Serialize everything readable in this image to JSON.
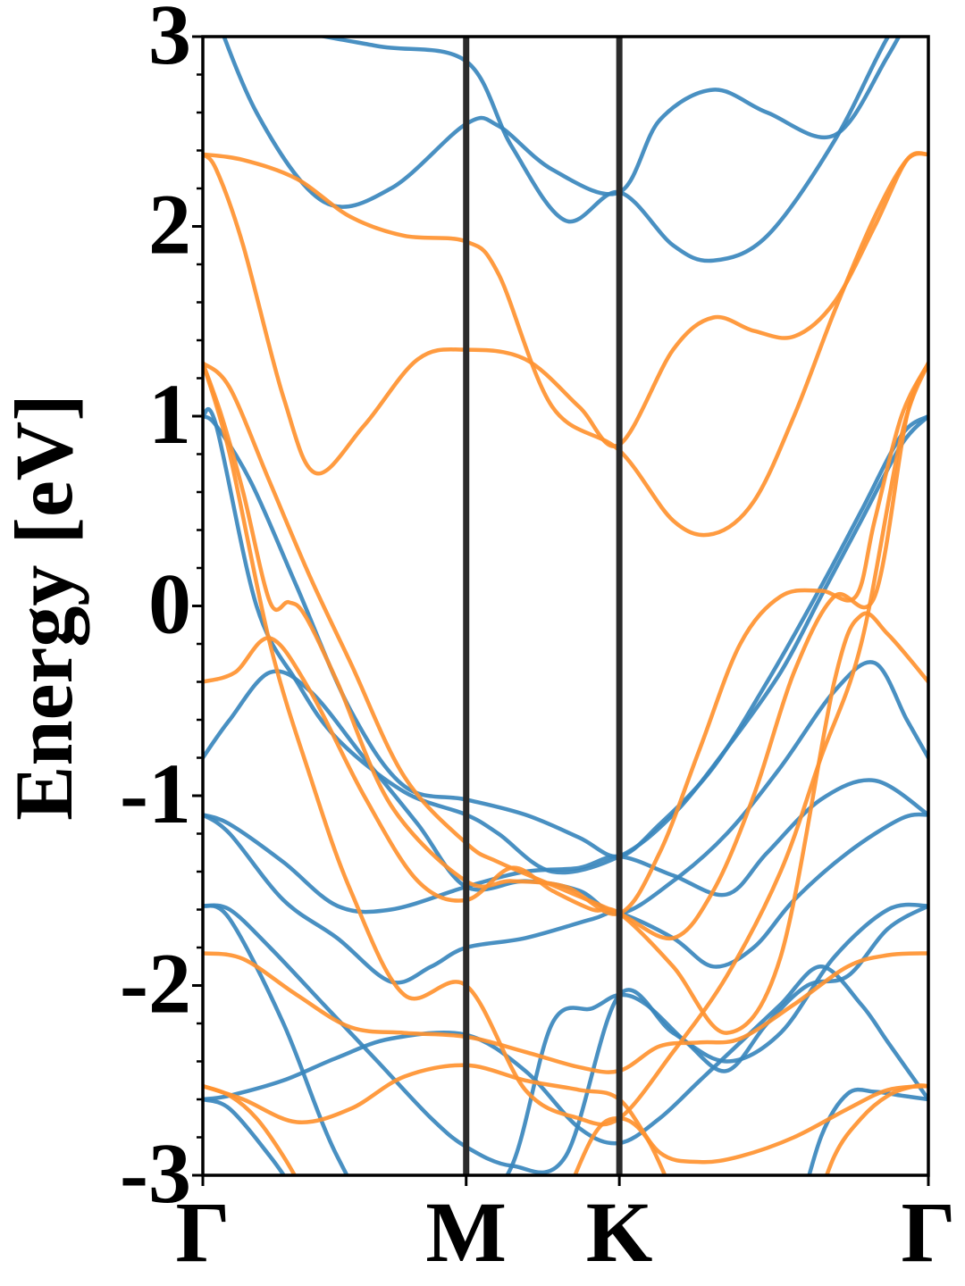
{
  "chart_data": {
    "type": "line",
    "title": "",
    "xlabel": "",
    "ylabel": "Energy [eV]",
    "ylim": [
      -3,
      3
    ],
    "xlim": [
      0,
      2.7
    ],
    "grid": false,
    "legend": "none",
    "high_symmetry_points": [
      {
        "label": "Γ",
        "x": 0.0
      },
      {
        "label": "M",
        "x": 0.98
      },
      {
        "label": "K",
        "x": 1.55
      },
      {
        "label": "Γ",
        "x": 2.7
      }
    ],
    "y_ticks": [
      {
        "value": 3,
        "label": "3"
      },
      {
        "value": 2,
        "label": "2"
      },
      {
        "value": 1,
        "label": "1"
      },
      {
        "value": 0,
        "label": "0"
      },
      {
        "value": -1,
        "label": "-1"
      },
      {
        "value": -2,
        "label": "-2"
      },
      {
        "value": -3,
        "label": "-3"
      }
    ],
    "series_colors": {
      "blue": "#3a87bd",
      "orange": "#ff9330"
    },
    "series": [
      {
        "color": "blue",
        "x": [
          0.0,
          0.2,
          0.45,
          0.7,
          0.98,
          1.1,
          1.3,
          1.55,
          1.7,
          1.9,
          2.1,
          2.35,
          2.55,
          2.7
        ],
        "y": [
          3.3,
          2.6,
          2.13,
          2.2,
          2.54,
          2.53,
          2.3,
          2.18,
          2.56,
          2.72,
          2.6,
          2.48,
          2.9,
          3.3
        ]
      },
      {
        "color": "blue",
        "x": [
          0.0,
          0.3,
          0.65,
          0.98,
          1.15,
          1.35,
          1.55,
          1.75,
          1.9,
          2.1,
          2.35,
          2.55,
          2.7
        ],
        "y": [
          3.2,
          3.05,
          2.95,
          2.87,
          2.42,
          2.03,
          2.18,
          1.9,
          1.82,
          1.95,
          2.45,
          3.0,
          3.3
        ]
      },
      {
        "color": "blue",
        "x": [
          0.0,
          0.05,
          0.18,
          0.35,
          0.55,
          0.75,
          0.98,
          1.2,
          1.4,
          1.55,
          1.7,
          1.9,
          2.1,
          2.3,
          2.45,
          2.6,
          2.7
        ],
        "y": [
          1.0,
          0.95,
          0.65,
          0.1,
          -0.55,
          -0.95,
          -1.02,
          -1.1,
          -1.22,
          -1.32,
          -1.15,
          -0.85,
          -0.4,
          0.1,
          0.5,
          0.9,
          1.0
        ]
      },
      {
        "color": "blue",
        "x": [
          0.0,
          0.05,
          0.2,
          0.35,
          0.5,
          0.75,
          0.98,
          1.1,
          1.3,
          1.55,
          1.75,
          1.95,
          2.15,
          2.3,
          2.45,
          2.6,
          2.7
        ],
        "y": [
          1.0,
          0.95,
          0.0,
          -0.4,
          -0.7,
          -0.98,
          -1.1,
          -1.2,
          -1.4,
          -1.32,
          -1.1,
          -0.75,
          -0.35,
          0.05,
          0.45,
          0.85,
          1.0
        ]
      },
      {
        "color": "blue",
        "x": [
          0.0,
          0.1,
          0.25,
          0.4,
          0.6,
          0.8,
          0.98,
          1.2,
          1.4,
          1.55,
          1.75,
          1.95,
          2.15,
          2.35,
          2.5,
          2.62,
          2.7
        ],
        "y": [
          -0.8,
          -0.6,
          -0.35,
          -0.45,
          -0.8,
          -1.15,
          -1.48,
          -1.45,
          -1.5,
          -1.62,
          -1.45,
          -1.2,
          -0.85,
          -0.45,
          -0.3,
          -0.6,
          -0.8
        ]
      },
      {
        "color": "blue",
        "x": [
          0.0,
          0.1,
          0.3,
          0.5,
          0.7,
          0.98,
          1.2,
          1.4,
          1.55,
          1.75,
          1.95,
          2.1,
          2.3,
          2.5,
          2.7
        ],
        "y": [
          -1.1,
          -1.15,
          -1.35,
          -1.58,
          -1.6,
          -1.48,
          -1.4,
          -1.38,
          -1.32,
          -1.42,
          -1.52,
          -1.3,
          -1.02,
          -0.92,
          -1.1
        ]
      },
      {
        "color": "blue",
        "x": [
          0.0,
          0.1,
          0.3,
          0.5,
          0.7,
          0.85,
          0.98,
          1.2,
          1.45,
          1.55,
          1.75,
          1.9,
          2.05,
          2.2,
          2.4,
          2.6,
          2.7
        ],
        "y": [
          -1.1,
          -1.2,
          -1.55,
          -1.75,
          -1.98,
          -1.9,
          -1.8,
          -1.75,
          -1.65,
          -1.62,
          -1.75,
          -1.9,
          -1.8,
          -1.55,
          -1.3,
          -1.12,
          -1.1
        ]
      },
      {
        "color": "blue",
        "x": [
          0.0,
          0.1,
          0.25,
          0.45,
          0.65,
          0.85,
          0.98,
          1.15,
          1.35,
          1.55,
          1.75,
          1.95,
          2.15,
          2.35,
          2.55,
          2.7
        ],
        "y": [
          -1.58,
          -1.6,
          -1.8,
          -2.1,
          -2.4,
          -2.7,
          -2.85,
          -2.95,
          -2.9,
          -2.05,
          -2.25,
          -2.4,
          -2.25,
          -1.85,
          -1.6,
          -1.58
        ]
      },
      {
        "color": "blue",
        "x": [
          0.0,
          0.1,
          0.3,
          0.5,
          0.7,
          0.98,
          1.15,
          1.3,
          1.45,
          1.55,
          1.65,
          1.8,
          1.95,
          2.1,
          2.25,
          2.4,
          2.55,
          2.7
        ],
        "y": [
          -1.58,
          -1.65,
          -2.2,
          -2.9,
          -3.3,
          -3.2,
          -2.95,
          -2.2,
          -2.12,
          -2.05,
          -2.1,
          -2.3,
          -2.45,
          -2.2,
          -2.0,
          -1.95,
          -1.7,
          -1.58
        ]
      },
      {
        "color": "blue",
        "x": [
          0.0,
          0.1,
          0.3,
          0.5,
          0.7,
          0.98,
          1.2,
          1.4,
          1.55,
          1.7,
          1.85,
          2.0,
          2.15,
          2.3,
          2.45,
          2.55,
          2.7
        ],
        "y": [
          -2.6,
          -2.58,
          -2.5,
          -2.38,
          -2.28,
          -2.26,
          -2.45,
          -2.75,
          -2.83,
          -2.7,
          -2.5,
          -2.3,
          -2.1,
          -1.9,
          -2.1,
          -2.3,
          -2.6
        ]
      },
      {
        "color": "blue",
        "x": [
          0.0,
          0.1,
          0.25,
          0.35,
          0.45
        ],
        "y": [
          -2.6,
          -2.65,
          -2.9,
          -3.1,
          -3.3
        ]
      },
      {
        "color": "blue",
        "x": [
          2.2,
          2.3,
          2.4,
          2.5,
          2.6,
          2.7
        ],
        "y": [
          -3.3,
          -2.8,
          -2.57,
          -2.56,
          -2.58,
          -2.6
        ]
      },
      {
        "color": "orange",
        "x": [
          0.0,
          0.15,
          0.35,
          0.55,
          0.75,
          0.98,
          1.1,
          1.3,
          1.55,
          1.75,
          1.9,
          2.05,
          2.2,
          2.35,
          2.5,
          2.62,
          2.7
        ],
        "y": [
          2.38,
          2.35,
          2.25,
          2.05,
          1.95,
          1.92,
          1.75,
          1.05,
          0.82,
          0.45,
          0.38,
          0.55,
          1.0,
          1.55,
          2.05,
          2.35,
          2.38
        ]
      },
      {
        "color": "orange",
        "x": [
          0.0,
          0.05,
          0.15,
          0.3,
          0.42,
          0.6,
          0.8,
          0.98,
          1.2,
          1.4,
          1.55,
          1.75,
          1.9,
          2.05,
          2.2,
          2.35,
          2.5,
          2.62,
          2.7
        ],
        "y": [
          2.38,
          2.3,
          1.9,
          1.1,
          0.7,
          0.95,
          1.3,
          1.35,
          1.3,
          1.05,
          0.85,
          1.35,
          1.52,
          1.45,
          1.42,
          1.6,
          2.0,
          2.35,
          2.38
        ]
      },
      {
        "color": "orange",
        "x": [
          0.0,
          0.1,
          0.25,
          0.4,
          0.55,
          0.75,
          0.98,
          1.1,
          1.35,
          1.55,
          1.75,
          1.9,
          2.05,
          2.2,
          2.35,
          2.5,
          2.62,
          2.7
        ],
        "y": [
          1.28,
          1.15,
          0.65,
          0.15,
          -0.3,
          -0.9,
          -1.25,
          -1.35,
          -1.5,
          -1.62,
          -1.75,
          -1.5,
          -1.0,
          -0.35,
          0.05,
          0.05,
          1.0,
          1.28
        ]
      },
      {
        "color": "orange",
        "x": [
          0.0,
          0.07,
          0.15,
          0.25,
          0.32,
          0.38,
          0.5,
          0.7,
          0.98,
          1.15,
          1.35,
          1.55,
          1.7,
          1.85,
          2.0,
          2.15,
          2.3,
          2.43,
          2.5,
          2.6,
          2.7
        ],
        "y": [
          1.28,
          1.0,
          0.6,
          0.02,
          0.02,
          -0.05,
          -0.4,
          -1.05,
          -1.45,
          -1.45,
          -1.48,
          -1.62,
          -1.3,
          -0.75,
          -0.2,
          0.05,
          0.08,
          0.05,
          0.45,
          1.0,
          1.28
        ]
      },
      {
        "color": "orange",
        "x": [
          0.0,
          0.12,
          0.25,
          0.4,
          0.6,
          0.8,
          0.98,
          1.15,
          1.3,
          1.45,
          1.55,
          1.75,
          1.95,
          2.15,
          2.35,
          2.45,
          2.55,
          2.7
        ],
        "y": [
          -0.4,
          -0.35,
          -0.17,
          -0.45,
          -1.0,
          -1.45,
          -1.55,
          -1.38,
          -1.5,
          -1.6,
          -1.62,
          -1.9,
          -2.25,
          -1.85,
          -0.4,
          -0.05,
          -0.15,
          -0.4
        ]
      },
      {
        "color": "orange",
        "x": [
          0.0,
          0.1,
          0.25,
          0.4,
          0.55,
          0.75,
          0.98,
          1.2,
          1.4,
          1.55,
          1.75,
          1.95,
          2.15,
          2.3,
          2.45,
          2.6,
          2.7
        ],
        "y": [
          1.28,
          0.8,
          -0.2,
          -0.9,
          -1.5,
          -2.05,
          -2.0,
          -2.55,
          -2.7,
          -2.7,
          -2.35,
          -1.95,
          -1.4,
          -0.8,
          -0.2,
          0.9,
          1.28
        ]
      },
      {
        "color": "orange",
        "x": [
          0.0,
          0.15,
          0.35,
          0.55,
          0.75,
          0.98,
          1.2,
          1.4,
          1.55,
          1.7,
          1.85,
          2.0,
          2.2,
          2.4,
          2.55,
          2.7
        ],
        "y": [
          -1.83,
          -1.86,
          -2.05,
          -2.22,
          -2.25,
          -2.27,
          -2.35,
          -2.43,
          -2.45,
          -2.32,
          -2.3,
          -2.28,
          -2.1,
          -1.9,
          -1.84,
          -1.83
        ]
      },
      {
        "color": "orange",
        "x": [
          0.0,
          0.15,
          0.35,
          0.55,
          0.75,
          0.98,
          1.2,
          1.4,
          1.55,
          1.7,
          1.85,
          2.0,
          2.2,
          2.4,
          2.55,
          2.7
        ],
        "y": [
          -2.53,
          -2.6,
          -2.72,
          -2.65,
          -2.48,
          -2.42,
          -2.5,
          -2.55,
          -2.6,
          -2.88,
          -2.93,
          -2.9,
          -2.8,
          -2.65,
          -2.55,
          -2.53
        ]
      },
      {
        "color": "orange",
        "x": [
          0.0,
          0.1,
          0.2,
          0.3,
          0.38,
          0.45
        ],
        "y": [
          -2.53,
          -2.58,
          -2.7,
          -2.9,
          -3.1,
          -3.3
        ]
      },
      {
        "color": "orange",
        "x": [
          1.3,
          1.45,
          1.55,
          1.65,
          1.75
        ],
        "y": [
          -3.3,
          -2.8,
          -2.7,
          -2.8,
          -3.1
        ]
      },
      {
        "color": "orange",
        "x": [
          2.25,
          2.35,
          2.45,
          2.55,
          2.65,
          2.7
        ],
        "y": [
          -3.3,
          -2.9,
          -2.7,
          -2.58,
          -2.53,
          -2.53
        ]
      }
    ]
  }
}
